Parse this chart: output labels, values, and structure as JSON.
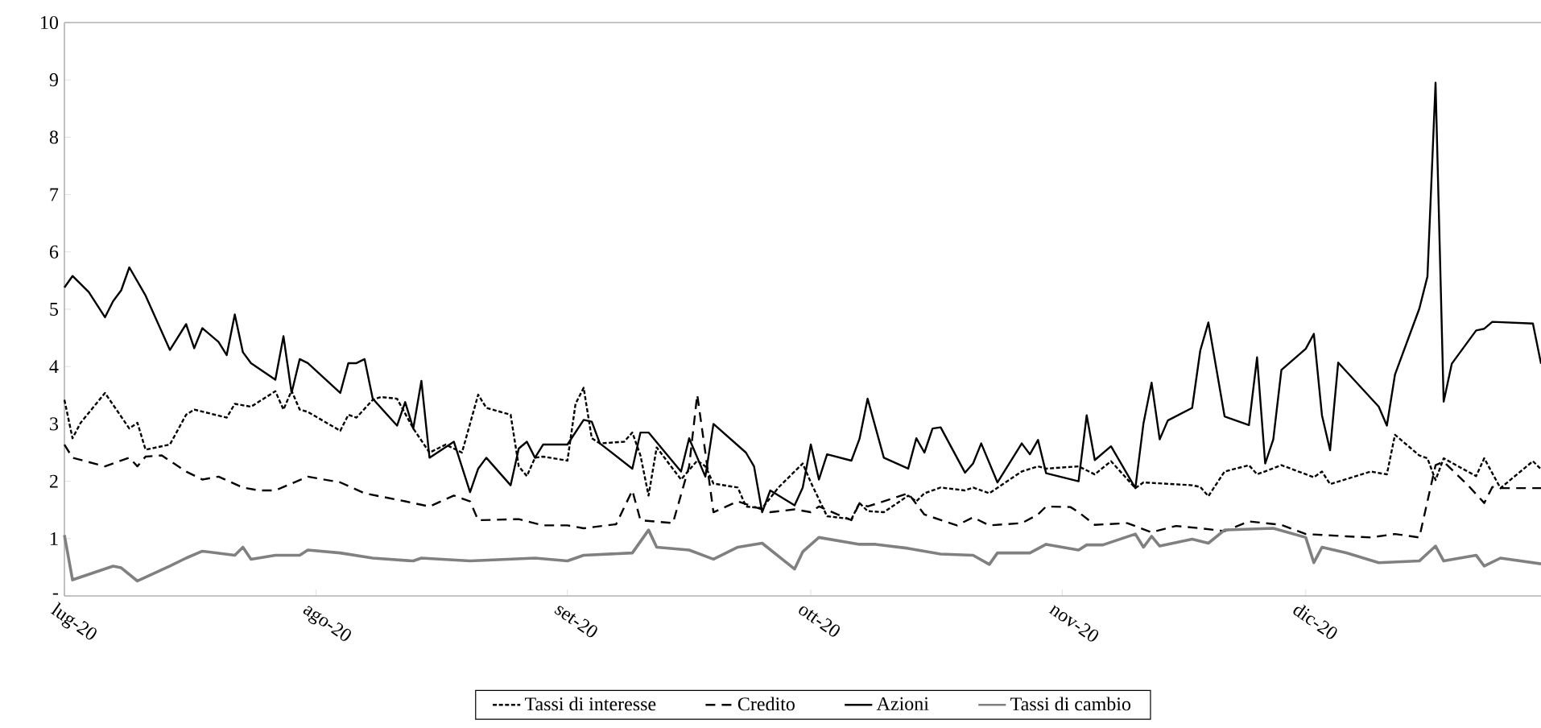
{
  "chart_data": {
    "type": "line",
    "xlim": [
      "2020-07-01",
      "2020-12-30"
    ],
    "xticks": [
      {
        "value": "2020-07-01",
        "label": "lug-20"
      },
      {
        "value": "2020-08-01",
        "label": "ago-20"
      },
      {
        "value": "2020-09-01",
        "label": "set-20"
      },
      {
        "value": "2020-10-01",
        "label": "ott-20"
      },
      {
        "value": "2020-11-01",
        "label": "nov-20"
      },
      {
        "value": "2020-12-01",
        "label": "dic-20"
      }
    ],
    "ylim": [
      0,
      10
    ],
    "yticks": [
      {
        "value": 0,
        "label": "-"
      },
      1,
      2,
      3,
      4,
      5,
      6,
      7,
      8,
      9,
      10
    ],
    "grid": false,
    "legend": "bottom",
    "series": [
      {
        "name": "Tassi di interesse",
        "color": "#000000",
        "line_style": "dotted",
        "x": [
          "2020-07-01",
          "2020-07-02",
          "2020-07-03",
          "2020-07-06",
          "2020-07-09",
          "2020-07-10",
          "2020-07-11",
          "2020-07-14",
          "2020-07-16",
          "2020-07-17",
          "2020-07-21",
          "2020-07-22",
          "2020-07-24",
          "2020-07-27",
          "2020-07-28",
          "2020-07-29",
          "2020-07-30",
          "2020-07-31",
          "2020-08-04",
          "2020-08-05",
          "2020-08-06",
          "2020-08-08",
          "2020-08-09",
          "2020-08-11",
          "2020-08-13",
          "2020-08-15",
          "2020-08-17",
          "2020-08-19",
          "2020-08-21",
          "2020-08-22",
          "2020-08-25",
          "2020-08-26",
          "2020-08-27",
          "2020-08-28",
          "2020-08-29",
          "2020-09-01",
          "2020-09-02",
          "2020-09-03",
          "2020-09-04",
          "2020-09-05",
          "2020-09-08",
          "2020-09-09",
          "2020-09-10",
          "2020-09-11",
          "2020-09-12",
          "2020-09-15",
          "2020-09-17",
          "2020-09-18",
          "2020-09-19",
          "2020-09-22",
          "2020-09-23",
          "2020-09-25",
          "2020-09-27",
          "2020-09-30",
          "2020-10-01",
          "2020-10-03",
          "2020-10-06",
          "2020-10-07",
          "2020-10-08",
          "2020-10-10",
          "2020-10-13",
          "2020-10-14",
          "2020-10-15",
          "2020-10-17",
          "2020-10-20",
          "2020-10-21",
          "2020-10-23",
          "2020-10-27",
          "2020-10-29",
          "2020-10-30",
          "2020-11-03",
          "2020-11-05",
          "2020-11-07",
          "2020-11-10",
          "2020-11-11",
          "2020-11-17",
          "2020-11-18",
          "2020-11-19",
          "2020-11-21",
          "2020-11-24",
          "2020-11-25",
          "2020-11-28",
          "2020-12-02",
          "2020-12-03",
          "2020-12-04",
          "2020-12-09",
          "2020-12-11",
          "2020-12-12",
          "2020-12-15",
          "2020-12-16",
          "2020-12-17",
          "2020-12-18",
          "2020-12-22",
          "2020-12-23",
          "2020-12-25",
          "2020-12-29",
          "2020-12-30"
        ],
        "values": [
          3.42,
          2.75,
          3.02,
          3.54,
          2.92,
          3.02,
          2.55,
          2.64,
          3.16,
          3.25,
          3.11,
          3.35,
          3.3,
          3.57,
          3.25,
          3.58,
          3.25,
          3.21,
          2.88,
          3.16,
          3.11,
          3.42,
          3.47,
          3.44,
          2.92,
          2.5,
          2.64,
          2.5,
          3.51,
          3.28,
          3.16,
          2.26,
          2.09,
          2.41,
          2.43,
          2.36,
          3.35,
          3.63,
          2.75,
          2.66,
          2.69,
          2.85,
          2.45,
          1.75,
          2.59,
          2.03,
          2.36,
          2.26,
          1.96,
          1.89,
          1.56,
          1.53,
          1.89,
          2.31,
          1.98,
          1.39,
          1.34,
          1.62,
          1.48,
          1.46,
          1.75,
          1.65,
          1.79,
          1.89,
          1.84,
          1.89,
          1.79,
          2.17,
          2.26,
          2.22,
          2.26,
          2.12,
          2.35,
          1.88,
          1.98,
          1.93,
          1.9,
          1.74,
          2.17,
          2.28,
          2.12,
          2.28,
          2.07,
          2.17,
          1.95,
          2.17,
          2.12,
          2.81,
          2.45,
          2.4,
          2.02,
          2.4,
          2.09,
          2.4,
          1.88,
          2.35,
          2.21
        ]
      },
      {
        "name": "Credito",
        "color": "#000000",
        "line_style": "dashed",
        "x": [
          "2020-07-01",
          "2020-07-02",
          "2020-07-06",
          "2020-07-09",
          "2020-07-10",
          "2020-07-11",
          "2020-07-13",
          "2020-07-16",
          "2020-07-18",
          "2020-07-20",
          "2020-07-23",
          "2020-07-25",
          "2020-07-27",
          "2020-07-31",
          "2020-08-04",
          "2020-08-07",
          "2020-08-12",
          "2020-08-15",
          "2020-08-18",
          "2020-08-20",
          "2020-08-21",
          "2020-08-26",
          "2020-08-29",
          "2020-09-01",
          "2020-09-03",
          "2020-09-07",
          "2020-09-09",
          "2020-09-10",
          "2020-09-14",
          "2020-09-16",
          "2020-09-17",
          "2020-09-18",
          "2020-09-19",
          "2020-09-22",
          "2020-09-26",
          "2020-09-29",
          "2020-10-01",
          "2020-10-02",
          "2020-10-06",
          "2020-10-07",
          "2020-10-08",
          "2020-10-13",
          "2020-10-15",
          "2020-10-19",
          "2020-10-21",
          "2020-10-23",
          "2020-10-27",
          "2020-10-29",
          "2020-10-30",
          "2020-11-02",
          "2020-11-03",
          "2020-11-05",
          "2020-11-09",
          "2020-11-12",
          "2020-11-15",
          "2020-11-18",
          "2020-11-21",
          "2020-11-24",
          "2020-11-28",
          "2020-12-01",
          "2020-12-06",
          "2020-12-09",
          "2020-12-12",
          "2020-12-15",
          "2020-12-17",
          "2020-12-18",
          "2020-12-21",
          "2020-12-23",
          "2020-12-24",
          "2020-12-25",
          "2020-12-30"
        ],
        "values": [
          2.64,
          2.41,
          2.26,
          2.41,
          2.26,
          2.43,
          2.45,
          2.17,
          2.03,
          2.08,
          1.89,
          1.84,
          1.84,
          2.08,
          1.98,
          1.79,
          1.65,
          1.56,
          1.75,
          1.65,
          1.32,
          1.34,
          1.23,
          1.23,
          1.18,
          1.25,
          1.84,
          1.32,
          1.27,
          2.26,
          3.51,
          2.5,
          1.46,
          1.65,
          1.46,
          1.51,
          1.46,
          1.56,
          1.32,
          1.62,
          1.56,
          1.79,
          1.42,
          1.23,
          1.37,
          1.23,
          1.27,
          1.42,
          1.56,
          1.55,
          1.46,
          1.24,
          1.27,
          1.11,
          1.22,
          1.18,
          1.13,
          1.3,
          1.24,
          1.08,
          1.04,
          1.02,
          1.08,
          1.02,
          2.28,
          2.34,
          1.93,
          1.62,
          1.9,
          1.88,
          1.88
        ]
      },
      {
        "name": "Azioni",
        "color": "#000000",
        "line_style": "solid",
        "x": [
          "2020-07-01",
          "2020-07-02",
          "2020-07-04",
          "2020-07-06",
          "2020-07-07",
          "2020-07-08",
          "2020-07-09",
          "2020-07-11",
          "2020-07-14",
          "2020-07-16",
          "2020-07-17",
          "2020-07-18",
          "2020-07-20",
          "2020-07-21",
          "2020-07-22",
          "2020-07-23",
          "2020-07-24",
          "2020-07-27",
          "2020-07-28",
          "2020-07-29",
          "2020-07-30",
          "2020-07-31",
          "2020-08-04",
          "2020-08-05",
          "2020-08-06",
          "2020-08-07",
          "2020-08-08",
          "2020-08-11",
          "2020-08-12",
          "2020-08-13",
          "2020-08-14",
          "2020-08-15",
          "2020-08-18",
          "2020-08-20",
          "2020-08-21",
          "2020-08-22",
          "2020-08-25",
          "2020-08-26",
          "2020-08-27",
          "2020-08-28",
          "2020-08-29",
          "2020-09-01",
          "2020-09-03",
          "2020-09-04",
          "2020-09-05",
          "2020-09-09",
          "2020-09-10",
          "2020-09-11",
          "2020-09-15",
          "2020-09-16",
          "2020-09-18",
          "2020-09-19",
          "2020-09-23",
          "2020-09-24",
          "2020-09-25",
          "2020-09-26",
          "2020-09-29",
          "2020-09-30",
          "2020-10-01",
          "2020-10-02",
          "2020-10-03",
          "2020-10-06",
          "2020-10-07",
          "2020-10-08",
          "2020-10-10",
          "2020-10-13",
          "2020-10-14",
          "2020-10-15",
          "2020-10-16",
          "2020-10-17",
          "2020-10-20",
          "2020-10-21",
          "2020-10-22",
          "2020-10-24",
          "2020-10-27",
          "2020-10-28",
          "2020-10-29",
          "2020-10-30",
          "2020-11-03",
          "2020-11-04",
          "2020-11-05",
          "2020-11-07",
          "2020-11-10",
          "2020-11-11",
          "2020-11-12",
          "2020-11-13",
          "2020-11-14",
          "2020-11-17",
          "2020-11-18",
          "2020-11-19",
          "2020-11-21",
          "2020-11-24",
          "2020-11-25",
          "2020-11-26",
          "2020-11-27",
          "2020-11-28",
          "2020-12-01",
          "2020-12-02",
          "2020-12-03",
          "2020-12-04",
          "2020-12-05",
          "2020-12-10",
          "2020-12-11",
          "2020-12-12",
          "2020-12-15",
          "2020-12-16",
          "2020-12-17",
          "2020-12-18",
          "2020-12-19",
          "2020-12-22",
          "2020-12-23",
          "2020-12-24",
          "2020-12-29",
          "2020-12-30"
        ],
        "values": [
          5.38,
          5.58,
          5.3,
          4.86,
          5.14,
          5.33,
          5.73,
          5.24,
          4.29,
          4.74,
          4.32,
          4.67,
          4.43,
          4.2,
          4.91,
          4.25,
          4.06,
          3.77,
          4.53,
          3.54,
          4.13,
          4.06,
          3.54,
          4.06,
          4.06,
          4.13,
          3.44,
          2.97,
          3.38,
          2.92,
          3.75,
          2.41,
          2.69,
          1.81,
          2.22,
          2.41,
          1.93,
          2.57,
          2.69,
          2.41,
          2.64,
          2.64,
          3.07,
          3.04,
          2.66,
          2.22,
          2.85,
          2.85,
          2.17,
          2.75,
          2.08,
          3.0,
          2.5,
          2.26,
          1.46,
          1.84,
          1.58,
          1.89,
          2.64,
          2.03,
          2.47,
          2.36,
          2.74,
          3.44,
          2.41,
          2.22,
          2.75,
          2.5,
          2.92,
          2.94,
          2.15,
          2.31,
          2.66,
          1.98,
          2.66,
          2.47,
          2.72,
          2.14,
          2.0,
          3.15,
          2.37,
          2.61,
          1.88,
          3.01,
          3.72,
          2.73,
          3.06,
          3.28,
          4.28,
          4.77,
          3.13,
          2.98,
          4.16,
          2.31,
          2.73,
          3.94,
          4.31,
          4.57,
          3.15,
          2.54,
          4.07,
          3.3,
          2.97,
          3.86,
          5.01,
          5.57,
          8.95,
          3.39,
          4.05,
          4.63,
          4.66,
          4.78,
          4.75,
          4.05
        ]
      },
      {
        "name": "Tassi di cambio",
        "color": "#808080",
        "line_style": "solid",
        "x": [
          "2020-07-01",
          "2020-07-02",
          "2020-07-07",
          "2020-07-08",
          "2020-07-10",
          "2020-07-14",
          "2020-07-16",
          "2020-07-18",
          "2020-07-22",
          "2020-07-23",
          "2020-07-24",
          "2020-07-27",
          "2020-07-30",
          "2020-07-31",
          "2020-08-04",
          "2020-08-08",
          "2020-08-13",
          "2020-08-14",
          "2020-08-20",
          "2020-08-28",
          "2020-09-01",
          "2020-09-03",
          "2020-09-09",
          "2020-09-11",
          "2020-09-12",
          "2020-09-16",
          "2020-09-19",
          "2020-09-22",
          "2020-09-25",
          "2020-09-29",
          "2020-09-30",
          "2020-10-02",
          "2020-10-07",
          "2020-10-09",
          "2020-10-13",
          "2020-10-17",
          "2020-10-21",
          "2020-10-23",
          "2020-10-24",
          "2020-10-28",
          "2020-10-30",
          "2020-11-03",
          "2020-11-04",
          "2020-11-06",
          "2020-11-10",
          "2020-11-11",
          "2020-11-12",
          "2020-11-13",
          "2020-11-17",
          "2020-11-19",
          "2020-11-21",
          "2020-11-27",
          "2020-12-01",
          "2020-12-02",
          "2020-12-03",
          "2020-12-06",
          "2020-12-10",
          "2020-12-15",
          "2020-12-17",
          "2020-12-18",
          "2020-12-22",
          "2020-12-23",
          "2020-12-25",
          "2020-12-30"
        ],
        "values": [
          1.06,
          0.28,
          0.52,
          0.49,
          0.26,
          0.52,
          0.66,
          0.78,
          0.71,
          0.85,
          0.64,
          0.71,
          0.71,
          0.8,
          0.75,
          0.66,
          0.61,
          0.66,
          0.61,
          0.66,
          0.61,
          0.71,
          0.75,
          1.15,
          0.85,
          0.8,
          0.64,
          0.85,
          0.92,
          0.47,
          0.77,
          1.02,
          0.9,
          0.9,
          0.83,
          0.73,
          0.71,
          0.55,
          0.75,
          0.75,
          0.9,
          0.8,
          0.89,
          0.89,
          1.08,
          0.85,
          1.04,
          0.87,
          0.99,
          0.92,
          1.15,
          1.18,
          1.02,
          0.58,
          0.85,
          0.75,
          0.58,
          0.61,
          0.87,
          0.61,
          0.71,
          0.52,
          0.66,
          0.56
        ]
      }
    ]
  }
}
